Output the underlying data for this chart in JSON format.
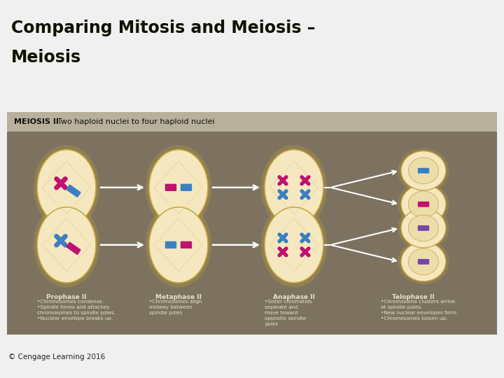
{
  "title_line1": "Comparing Mitosis and Meiosis –",
  "title_line2": "Meiosis",
  "title_bg": "#f2f275",
  "title_color": "#111100",
  "panel_bg": "#7d7260",
  "header_bg": "#b8b09a",
  "header_bold": "MEIOSIS II",
  "header_rest": "  Two haploid nuclei to four haploid nuclei",
  "phase_labels": [
    "Prophase II",
    "Metaphase II",
    "Anaphase II",
    "Telophase II"
  ],
  "phase_bullets": [
    "•Chromosomes condense.\n•Spindle forms and attaches\nchromosomes to spindle poles.\n•Nuclear envelope breaks up.",
    "•Chromosomes align\nmidway between\nspindle poles",
    "•Sister chromatids\nseparate and\nmove toward\nopposite spindle\npoles",
    "•Chromosome clusters arrive\nat spindle poles.\n•New nuclear envelopes form.\n•Chromosomes loosen up."
  ],
  "footer": "© Cengage Learning 2016",
  "cell_fill": "#f5e8c0",
  "cell_outline": "#c8a840",
  "chr_magenta": "#c01070",
  "chr_blue": "#3a7fc1",
  "chr_purple": "#7744aa",
  "text_light": "#e8e0cc",
  "text_dark": "#111111",
  "arrow_color": "#ffffff",
  "spindle_color": "#ddd090",
  "bg_color": "#f0f0f0"
}
